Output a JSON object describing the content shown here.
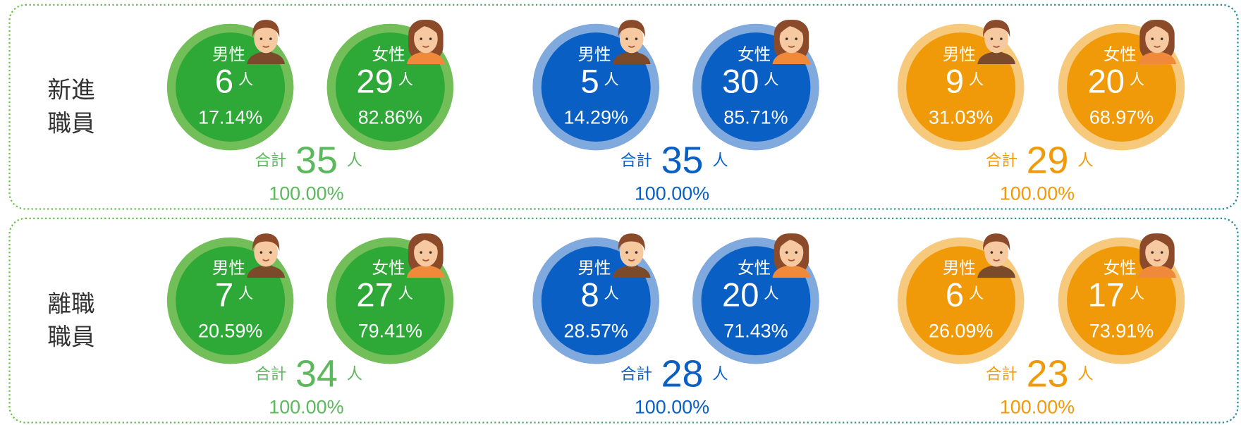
{
  "rows": [
    {
      "label": [
        "新進",
        "職員"
      ],
      "groups": [
        {
          "male": {
            "label": "男性",
            "count": 6,
            "unit": "人",
            "percent": "17.14%"
          },
          "female": {
            "label": "女性",
            "count": 29,
            "unit": "人",
            "percent": "82.86%"
          },
          "total": {
            "label": "合計",
            "count": 35,
            "unit": "人",
            "percent": "100.00%"
          }
        },
        {
          "male": {
            "label": "男性",
            "count": 5,
            "unit": "人",
            "percent": "14.29%"
          },
          "female": {
            "label": "女性",
            "count": 30,
            "unit": "人",
            "percent": "85.71%"
          },
          "total": {
            "label": "合計",
            "count": 35,
            "unit": "人",
            "percent": "100.00%"
          }
        },
        {
          "male": {
            "label": "男性",
            "count": 9,
            "unit": "人",
            "percent": "31.03%"
          },
          "female": {
            "label": "女性",
            "count": 20,
            "unit": "人",
            "percent": "68.97%"
          },
          "total": {
            "label": "合計",
            "count": 29,
            "unit": "人",
            "percent": "100.00%"
          }
        }
      ]
    },
    {
      "label": [
        "離職",
        "職員"
      ],
      "groups": [
        {
          "male": {
            "label": "男性",
            "count": 7,
            "unit": "人",
            "percent": "20.59%"
          },
          "female": {
            "label": "女性",
            "count": 27,
            "unit": "人",
            "percent": "79.41%"
          },
          "total": {
            "label": "合計",
            "count": 34,
            "unit": "人",
            "percent": "100.00%"
          }
        },
        {
          "male": {
            "label": "男性",
            "count": 8,
            "unit": "人",
            "percent": "28.57%"
          },
          "female": {
            "label": "女性",
            "count": 20,
            "unit": "人",
            "percent": "71.43%"
          },
          "total": {
            "label": "合計",
            "count": 28,
            "unit": "人",
            "percent": "100.00%"
          }
        },
        {
          "male": {
            "label": "男性",
            "count": 6,
            "unit": "人",
            "percent": "26.09%"
          },
          "female": {
            "label": "女性",
            "count": 17,
            "unit": "人",
            "percent": "73.91%"
          },
          "total": {
            "label": "合計",
            "count": 23,
            "unit": "人",
            "percent": "100.00%"
          }
        }
      ]
    }
  ],
  "group_colors": [
    {
      "fill": "#2ea836",
      "ring": "#72bf5a",
      "text": "#5cb85c"
    },
    {
      "fill": "#0a5fc4",
      "ring": "#80a9dd",
      "text": "#0a5fc4"
    },
    {
      "fill": "#f09a0a",
      "ring": "#f6c97c",
      "text": "#f09a0a"
    }
  ]
}
